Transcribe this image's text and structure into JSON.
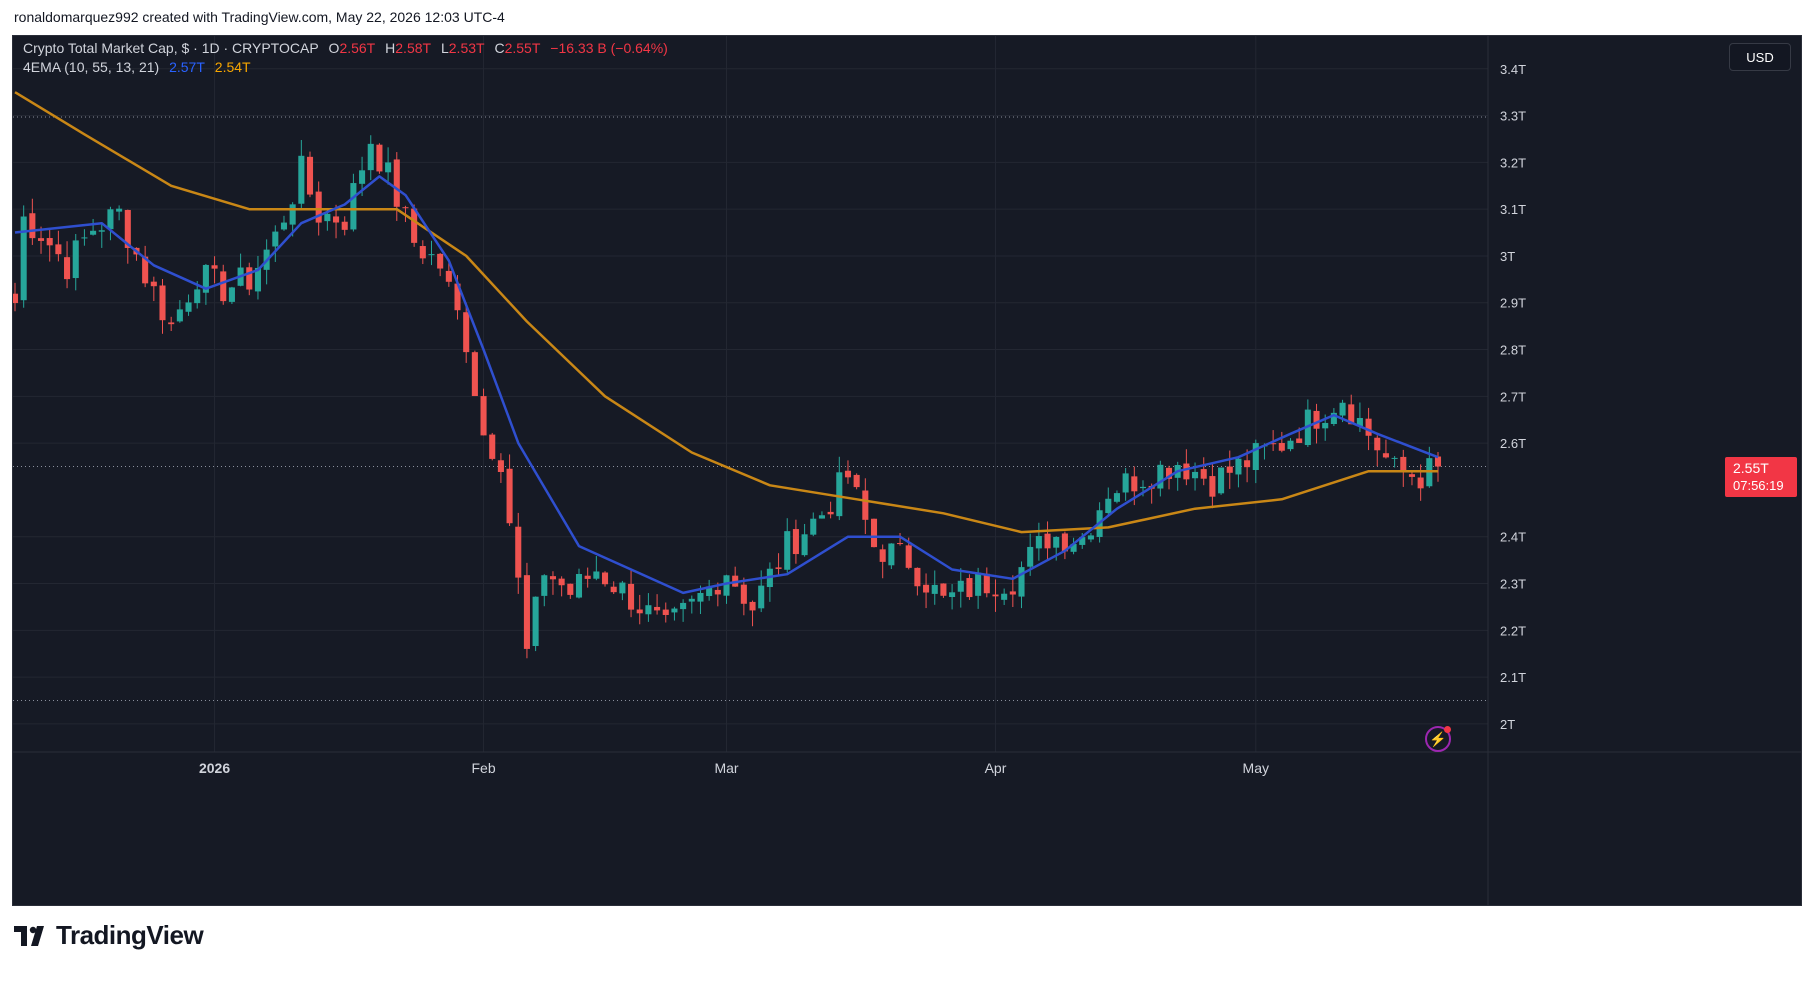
{
  "header": {
    "credit": "ronaldomarquez992 created with TradingView.com, May 22, 2026 12:03 UTC-4"
  },
  "legend": {
    "symbol": "Crypto Total Market Cap, $ · 1D · CRYPTOCAP",
    "o_label": "O",
    "o_value": "2.56T",
    "h_label": "H",
    "h_value": "2.58T",
    "l_label": "L",
    "l_value": "2.53T",
    "c_label": "C",
    "c_value": "2.55T",
    "change": "−16.33 B (−0.64%)",
    "indicator": "4EMA (10, 55, 13, 21)",
    "ema_fast_value": "2.57T",
    "ema_slow_value": "2.54T"
  },
  "controls": {
    "currency_button": "USD"
  },
  "price_tag": {
    "price": "2.55T",
    "countdown": "07:56:19"
  },
  "logo": {
    "text": "TradingView"
  },
  "colors": {
    "background": "#161a25",
    "up": "#26a69a",
    "down": "#ef5350",
    "ema_fast": "#2f4fcf",
    "ema_slow": "#c98716",
    "grid": "#232732",
    "axis_text": "#d1d4dc"
  },
  "chart_data": {
    "type": "candlestick",
    "x_range": [
      "2025-12-09",
      "2026-05-22"
    ],
    "y_range": [
      1.94,
      3.47
    ],
    "y_scale": "linear",
    "y_ticks": [
      {
        "value": 3.4,
        "label": "3.4T"
      },
      {
        "value": 3.3,
        "label": "3.3T"
      },
      {
        "value": 3.2,
        "label": "3.2T"
      },
      {
        "value": 3.1,
        "label": "3.1T"
      },
      {
        "value": 3.0,
        "label": "3T"
      },
      {
        "value": 2.9,
        "label": "2.9T"
      },
      {
        "value": 2.8,
        "label": "2.8T"
      },
      {
        "value": 2.7,
        "label": "2.7T"
      },
      {
        "value": 2.6,
        "label": "2.6T"
      },
      {
        "value": 2.4,
        "label": "2.4T"
      },
      {
        "value": 2.3,
        "label": "2.3T"
      },
      {
        "value": 2.2,
        "label": "2.2T"
      },
      {
        "value": 2.1,
        "label": "2.1T"
      },
      {
        "value": 2.0,
        "label": "2T"
      }
    ],
    "x_ticks": [
      {
        "date": "2026-01-01",
        "label": "2026",
        "bold": true
      },
      {
        "date": "2026-02-01",
        "label": "Feb"
      },
      {
        "date": "2026-03-01",
        "label": "Mar"
      },
      {
        "date": "2026-04-01",
        "label": "Apr"
      },
      {
        "date": "2026-05-01",
        "label": "May"
      }
    ],
    "reference_lines": [
      {
        "value": 3.297,
        "style": "dotted"
      },
      {
        "value": 2.55,
        "style": "dotted"
      },
      {
        "value": 2.05,
        "style": "dotted"
      }
    ],
    "close_path": [
      [
        "2025-12-09",
        2.9
      ],
      [
        "2025-12-10",
        3.08
      ],
      [
        "2025-12-12",
        3.05
      ],
      [
        "2025-12-15",
        2.98
      ],
      [
        "2025-12-18",
        3.06
      ],
      [
        "2025-12-21",
        3.09
      ],
      [
        "2025-12-24",
        2.96
      ],
      [
        "2025-12-27",
        2.85
      ],
      [
        "2025-12-30",
        2.96
      ],
      [
        "2026-01-02",
        2.93
      ],
      [
        "2026-01-05",
        2.95
      ],
      [
        "2026-01-08",
        3.04
      ],
      [
        "2026-01-11",
        3.18
      ],
      [
        "2026-01-13",
        3.09
      ],
      [
        "2026-01-16",
        3.08
      ],
      [
        "2026-01-19",
        3.25
      ],
      [
        "2026-01-21",
        3.17
      ],
      [
        "2026-01-24",
        3.03
      ],
      [
        "2026-01-27",
        2.98
      ],
      [
        "2026-01-30",
        2.82
      ],
      [
        "2026-02-01",
        2.62
      ],
      [
        "2026-02-03",
        2.57
      ],
      [
        "2026-02-05",
        2.3
      ],
      [
        "2026-02-06",
        2.15
      ],
      [
        "2026-02-08",
        2.33
      ],
      [
        "2026-02-11",
        2.28
      ],
      [
        "2026-02-14",
        2.33
      ],
      [
        "2026-02-18",
        2.27
      ],
      [
        "2026-02-22",
        2.2
      ],
      [
        "2026-02-25",
        2.25
      ],
      [
        "2026-03-01",
        2.33
      ],
      [
        "2026-03-04",
        2.25
      ],
      [
        "2026-03-08",
        2.38
      ],
      [
        "2026-03-12",
        2.45
      ],
      [
        "2026-03-15",
        2.53
      ],
      [
        "2026-03-18",
        2.38
      ],
      [
        "2026-03-22",
        2.35
      ],
      [
        "2026-03-26",
        2.26
      ],
      [
        "2026-03-30",
        2.3
      ],
      [
        "2026-04-03",
        2.31
      ],
      [
        "2026-04-07",
        2.4
      ],
      [
        "2026-04-11",
        2.4
      ],
      [
        "2026-04-14",
        2.5
      ],
      [
        "2026-04-18",
        2.53
      ],
      [
        "2026-04-22",
        2.56
      ],
      [
        "2026-04-26",
        2.52
      ],
      [
        "2026-04-30",
        2.56
      ],
      [
        "2026-05-04",
        2.6
      ],
      [
        "2026-05-08",
        2.66
      ],
      [
        "2026-05-11",
        2.7
      ],
      [
        "2026-05-14",
        2.62
      ],
      [
        "2026-05-17",
        2.54
      ],
      [
        "2026-05-20",
        2.53
      ],
      [
        "2026-05-22",
        2.55
      ]
    ],
    "ema_fast": [
      [
        "2025-12-09",
        3.05
      ],
      [
        "2025-12-14",
        3.06
      ],
      [
        "2025-12-19",
        3.07
      ],
      [
        "2025-12-25",
        2.98
      ],
      [
        "2025-12-31",
        2.93
      ],
      [
        "2026-01-06",
        2.97
      ],
      [
        "2026-01-11",
        3.07
      ],
      [
        "2026-01-16",
        3.11
      ],
      [
        "2026-01-20",
        3.17
      ],
      [
        "2026-01-23",
        3.13
      ],
      [
        "2026-01-28",
        2.99
      ],
      [
        "2026-02-01",
        2.8
      ],
      [
        "2026-02-05",
        2.6
      ],
      [
        "2026-02-12",
        2.38
      ],
      [
        "2026-02-18",
        2.33
      ],
      [
        "2026-02-24",
        2.28
      ],
      [
        "2026-03-01",
        2.3
      ],
      [
        "2026-03-08",
        2.32
      ],
      [
        "2026-03-15",
        2.4
      ],
      [
        "2026-03-21",
        2.4
      ],
      [
        "2026-03-27",
        2.33
      ],
      [
        "2026-04-03",
        2.31
      ],
      [
        "2026-04-09",
        2.37
      ],
      [
        "2026-04-15",
        2.46
      ],
      [
        "2026-04-22",
        2.54
      ],
      [
        "2026-04-29",
        2.57
      ],
      [
        "2026-05-05",
        2.62
      ],
      [
        "2026-05-10",
        2.66
      ],
      [
        "2026-05-15",
        2.62
      ],
      [
        "2026-05-22",
        2.57
      ]
    ],
    "ema_slow": [
      [
        "2025-12-09",
        3.35
      ],
      [
        "2025-12-17",
        3.26
      ],
      [
        "2025-12-27",
        3.15
      ],
      [
        "2026-01-05",
        3.1
      ],
      [
        "2026-01-14",
        3.1
      ],
      [
        "2026-01-22",
        3.1
      ],
      [
        "2026-01-30",
        3.0
      ],
      [
        "2026-02-06",
        2.86
      ],
      [
        "2026-02-15",
        2.7
      ],
      [
        "2026-02-25",
        2.58
      ],
      [
        "2026-03-06",
        2.51
      ],
      [
        "2026-03-16",
        2.48
      ],
      [
        "2026-03-26",
        2.45
      ],
      [
        "2026-04-04",
        2.41
      ],
      [
        "2026-04-14",
        2.42
      ],
      [
        "2026-04-24",
        2.46
      ],
      [
        "2026-05-04",
        2.48
      ],
      [
        "2026-05-14",
        2.54
      ],
      [
        "2026-05-22",
        2.54
      ]
    ]
  }
}
